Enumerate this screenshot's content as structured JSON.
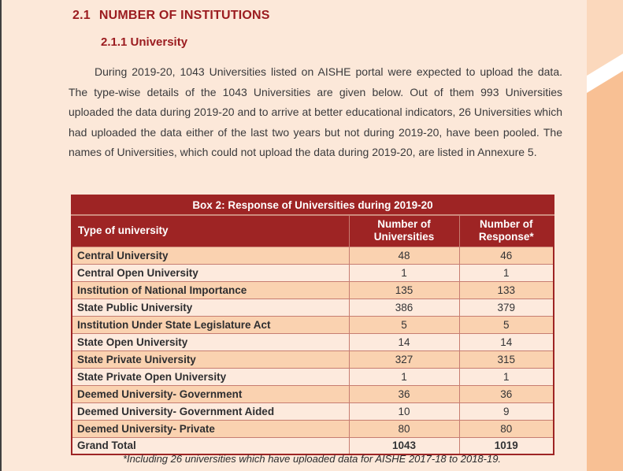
{
  "page": {
    "heading_number": "2.1",
    "heading_text": "NUMBER OF INSTITUTIONS",
    "subheading": "2.1.1 University",
    "paragraph": "During 2019-20, 1043 Universities listed on AISHE portal were expected to upload the data. The type-wise details of the 1043 Universities are given below. Out of them 993 Universities uploaded the data during 2019-20 and to arrive at better educational indicators, 26 Universities which had uploaded the data either of the last two years but not during 2019-20, have been pooled. The names of Universities, which could not upload the data during 2019-20, are listed in Annexure 5.",
    "footnote": "*Including 26 universities which have uploaded data for AISHE 2017-18 to 2018-19."
  },
  "table": {
    "title": "Box 2: Response of Universities during 2019-20",
    "columns": [
      "Type of university",
      "Number of Universities",
      "Number of Response*"
    ],
    "rows": [
      {
        "type": "Central University",
        "universities": "48",
        "response": "46"
      },
      {
        "type": "Central Open University",
        "universities": "1",
        "response": "1"
      },
      {
        "type": "Institution of National Importance",
        "universities": "135",
        "response": "133"
      },
      {
        "type": "State Public University",
        "universities": "386",
        "response": "379"
      },
      {
        "type": "Institution Under State Legislature Act",
        "universities": "5",
        "response": "5"
      },
      {
        "type": "State Open University",
        "universities": "14",
        "response": "14"
      },
      {
        "type": "State Private University",
        "universities": "327",
        "response": "315"
      },
      {
        "type": "State Private Open University",
        "universities": "1",
        "response": "1"
      },
      {
        "type": "Deemed University- Government",
        "universities": "36",
        "response": "36"
      },
      {
        "type": "Deemed University- Government Aided",
        "universities": "10",
        "response": "9"
      },
      {
        "type": "Deemed University- Private",
        "universities": "80",
        "response": "80"
      },
      {
        "type": "Grand Total",
        "universities": "1043",
        "response": "1019"
      }
    ]
  },
  "colors": {
    "page_background": "#fce8d9",
    "heading_red": "#9b1c20",
    "table_header_red": "#9e2424",
    "row_dark_peach": "#fad2b0",
    "row_light_peach": "#fdeadd",
    "inner_border": "#c77d71",
    "right_strip_lower": "#f8c094",
    "right_strip_upper": "#fbd8bc",
    "left_edge": "#3f3f3f",
    "body_text": "#3a3a3c"
  }
}
